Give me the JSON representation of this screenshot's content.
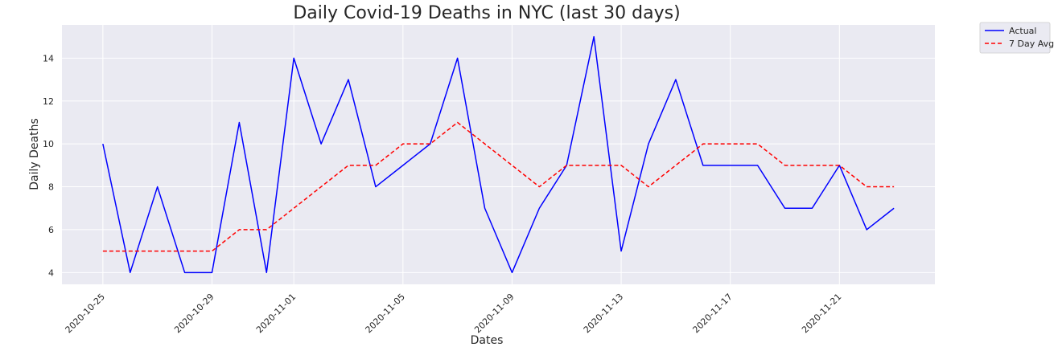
{
  "chart_data": {
    "type": "line",
    "title": "Daily Covid-19 Deaths in NYC (last 30 days)",
    "xlabel": "Dates",
    "ylabel": "Daily Deaths",
    "x": [
      "2020-10-25",
      "2020-10-26",
      "2020-10-27",
      "2020-10-28",
      "2020-10-29",
      "2020-10-30",
      "2020-10-31",
      "2020-11-01",
      "2020-11-02",
      "2020-11-03",
      "2020-11-04",
      "2020-11-05",
      "2020-11-06",
      "2020-11-07",
      "2020-11-08",
      "2020-11-09",
      "2020-11-10",
      "2020-11-11",
      "2020-11-12",
      "2020-11-13",
      "2020-11-14",
      "2020-11-15",
      "2020-11-16",
      "2020-11-17",
      "2020-11-18",
      "2020-11-19",
      "2020-11-20",
      "2020-11-21",
      "2020-11-22",
      "2020-11-23"
    ],
    "x_ticks": [
      "2020-10-25",
      "2020-10-29",
      "2020-11-01",
      "2020-11-05",
      "2020-11-09",
      "2020-11-13",
      "2020-11-17",
      "2020-11-21"
    ],
    "y_ticks": [
      4,
      6,
      8,
      10,
      12,
      14
    ],
    "ylim": [
      3.45,
      15.55
    ],
    "xlim": [
      "2020-10-23 12:00",
      "2020-11-24 12:00"
    ],
    "grid": true,
    "legend_position": "outside-top-right",
    "series": [
      {
        "name": "Actual",
        "color": "#0000ff",
        "style": "solid",
        "values": [
          10,
          4,
          8,
          4,
          4,
          11,
          4,
          14,
          10,
          13,
          8,
          9,
          10,
          14,
          7,
          4,
          7,
          9,
          15,
          5,
          10,
          13,
          9,
          9,
          9,
          7,
          7,
          9,
          6,
          7
        ]
      },
      {
        "name": "7 Day Avg",
        "color": "#ff0000",
        "style": "dashed",
        "values": [
          5,
          5,
          5,
          5,
          5,
          6,
          6,
          7,
          8,
          9,
          9,
          10,
          10,
          11,
          10,
          9,
          8,
          9,
          9,
          9,
          8,
          9,
          10,
          10,
          10,
          9,
          9,
          9,
          8,
          8
        ]
      }
    ]
  }
}
